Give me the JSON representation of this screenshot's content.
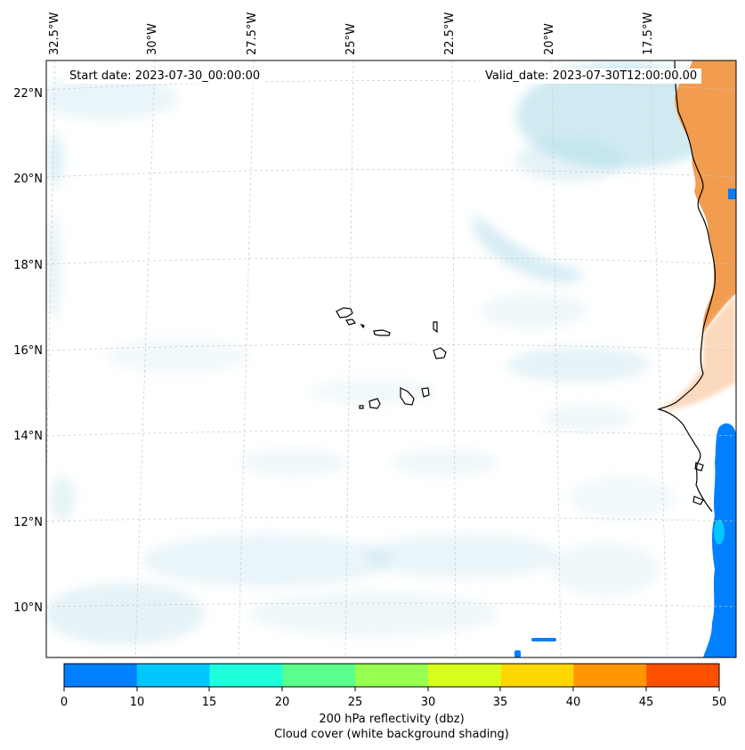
{
  "header": {
    "start_date": "Start date: 2023-07-30_00:00:00",
    "valid_date": "Valid_date: 2023-07-30T12:00:00.00"
  },
  "axes": {
    "lon_labels": [
      "32.5°W",
      "30°W",
      "27.5°W",
      "25°W",
      "22.5°W",
      "20°W",
      "17.5°W"
    ],
    "lat_labels": [
      "22°N",
      "20°N",
      "18°N",
      "16°N",
      "14°N",
      "12°N",
      "10°N"
    ]
  },
  "colorbar": {
    "ticks": [
      "0",
      "10",
      "15",
      "20",
      "25",
      "30",
      "35",
      "40",
      "45",
      "50"
    ],
    "colors": [
      "#0080ff",
      "#00c8ff",
      "#1effdc",
      "#5aff8c",
      "#96ff50",
      "#d7ff1e",
      "#ffd700",
      "#ff9600",
      "#ff5000"
    ],
    "caption_line1": "200 hPa reflectivity (dbz)",
    "caption_line2": "Cloud cover (white background shading)"
  },
  "colors": {
    "cloud": "#a8d8e6",
    "warm_land": "#f29c4f",
    "warm_land_light": "#fbd9bd",
    "reflectivity_blue": "#0080ff"
  }
}
